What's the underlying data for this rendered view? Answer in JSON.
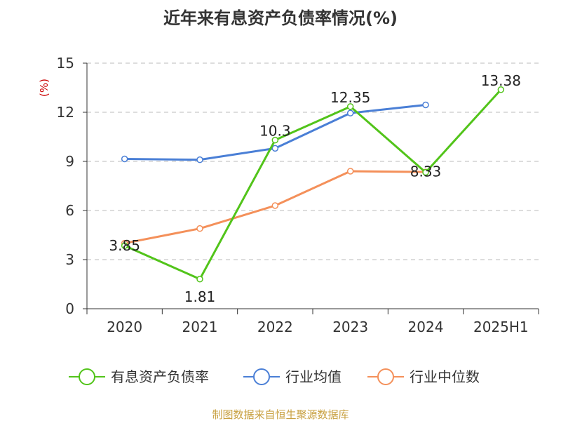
{
  "chart_data": {
    "type": "line",
    "title": "近年来有息资产负债率情况(%)",
    "ylabel": "(%)",
    "categories": [
      "2020",
      "2021",
      "2022",
      "2023",
      "2024",
      "2025H1"
    ],
    "ylim": [
      0,
      15
    ],
    "yticks": [
      0,
      3,
      6,
      9,
      12,
      15
    ],
    "grid": true,
    "legend_position": "bottom",
    "series": [
      {
        "name": "有息资产负债率",
        "color": "#52c41a",
        "values": [
          3.85,
          1.81,
          10.3,
          12.35,
          8.33,
          13.38
        ],
        "labels": [
          "3.85",
          "1.81",
          "10.3",
          "12.35",
          "8.33",
          "13.38"
        ]
      },
      {
        "name": "行业均值",
        "color": "#4a7fd6",
        "values": [
          9.15,
          9.1,
          9.8,
          11.95,
          12.45,
          null
        ]
      },
      {
        "name": "行业中位数",
        "color": "#f4905a",
        "values": [
          4.0,
          4.9,
          6.3,
          8.4,
          8.35,
          null
        ]
      }
    ],
    "source": "制图数据来自恒生聚源数据库"
  }
}
